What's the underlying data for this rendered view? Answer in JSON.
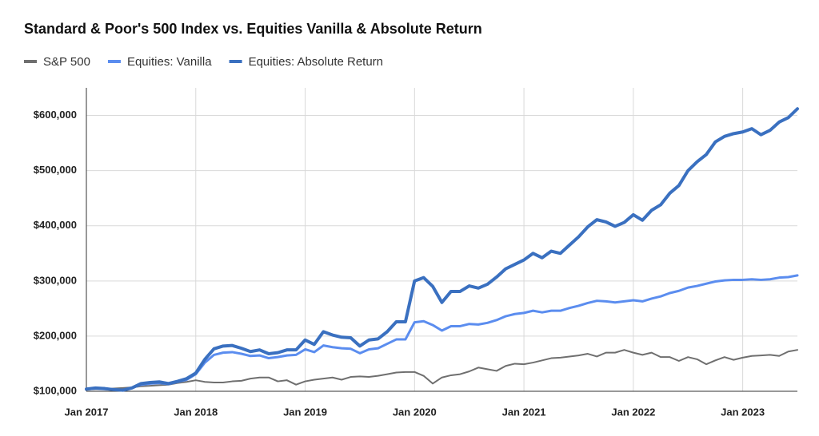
{
  "chart_data": {
    "type": "line",
    "title": "Standard & Poor's 500 Index vs. Equities Vanilla & Absolute Return",
    "categories": [
      "Jan 2017",
      null,
      null,
      null,
      null,
      null,
      null,
      null,
      null,
      null,
      null,
      null,
      "Jan 2018",
      null,
      null,
      null,
      null,
      null,
      null,
      null,
      null,
      null,
      null,
      null,
      "Jan 2019",
      null,
      null,
      null,
      null,
      null,
      null,
      null,
      null,
      null,
      null,
      null,
      "Jan 2020",
      null,
      null,
      null,
      null,
      null,
      null,
      null,
      null,
      null,
      null,
      null,
      "Jan 2021",
      null,
      null,
      null,
      null,
      null,
      null,
      null,
      null,
      null,
      null,
      null,
      "Jan 2022",
      null,
      null,
      null,
      null,
      null,
      null,
      null,
      null,
      null,
      null,
      null,
      "Jan 2023",
      null,
      null,
      null,
      null,
      null,
      null
    ],
    "series": [
      {
        "name": "S&P 500",
        "color": "#6f6f6f",
        "values": [
          103000,
          104000,
          104000,
          105000,
          106000,
          107000,
          109000,
          110000,
          111000,
          112000,
          115000,
          117000,
          120000,
          117000,
          116000,
          116000,
          118000,
          119000,
          123000,
          125000,
          125000,
          118000,
          120000,
          112000,
          118000,
          121000,
          123000,
          125000,
          121000,
          126000,
          127000,
          126000,
          128000,
          131000,
          134000,
          135000,
          135000,
          128000,
          114000,
          125000,
          129000,
          131000,
          136000,
          143000,
          140000,
          137000,
          146000,
          150000,
          149000,
          152000,
          156000,
          160000,
          161000,
          163000,
          165000,
          168000,
          163000,
          170000,
          170000,
          175000,
          170000,
          166000,
          170000,
          162000,
          162000,
          155000,
          162000,
          158000,
          149000,
          156000,
          162000,
          157000,
          161000,
          164000,
          165000,
          166000,
          164000,
          172000,
          175000
        ]
      },
      {
        "name": "Equities: Vanilla",
        "color": "#5b8def",
        "values": [
          104000,
          105000,
          104000,
          103000,
          102000,
          106000,
          112000,
          114000,
          115000,
          113000,
          117000,
          121000,
          131000,
          152000,
          166000,
          170000,
          171000,
          168000,
          164000,
          165000,
          160000,
          162000,
          165000,
          166000,
          176000,
          171000,
          183000,
          180000,
          178000,
          177000,
          169000,
          176000,
          178000,
          186000,
          194000,
          194000,
          225000,
          227000,
          220000,
          210000,
          218000,
          218000,
          222000,
          221000,
          224000,
          229000,
          236000,
          240000,
          242000,
          246000,
          243000,
          246000,
          246000,
          251000,
          255000,
          260000,
          264000,
          263000,
          261000,
          263000,
          265000,
          263000,
          268000,
          272000,
          278000,
          282000,
          288000,
          291000,
          295000,
          299000,
          301000,
          302000,
          302000,
          303000,
          302000,
          303000,
          306000,
          307000,
          310000
        ]
      },
      {
        "name": "Equities: Absolute Return",
        "color": "#3a70c0",
        "values": [
          104000,
          106000,
          105000,
          103000,
          102000,
          106000,
          114000,
          116000,
          117000,
          114000,
          118000,
          123000,
          133000,
          158000,
          177000,
          182000,
          183000,
          178000,
          172000,
          175000,
          168000,
          170000,
          175000,
          175000,
          193000,
          185000,
          208000,
          202000,
          198000,
          197000,
          182000,
          193000,
          195000,
          208000,
          226000,
          226000,
          300000,
          306000,
          290000,
          261000,
          281000,
          281000,
          291000,
          287000,
          294000,
          307000,
          322000,
          330000,
          338000,
          350000,
          342000,
          354000,
          350000,
          365000,
          380000,
          398000,
          411000,
          407000,
          399000,
          406000,
          420000,
          410000,
          428000,
          438000,
          459000,
          473000,
          500000,
          516000,
          529000,
          552000,
          562000,
          567000,
          570000,
          576000,
          565000,
          573000,
          588000,
          596000,
          612000
        ]
      }
    ],
    "ylim": [
      100000,
      650000
    ],
    "yticks": [
      {
        "value": 100000,
        "label": "$100,000"
      },
      {
        "value": 200000,
        "label": "$200,000"
      },
      {
        "value": 300000,
        "label": "$300,000"
      },
      {
        "value": 400000,
        "label": "$400,000"
      },
      {
        "value": 500000,
        "label": "$500,000"
      },
      {
        "value": 600000,
        "label": "$600,000"
      }
    ],
    "grid": true
  }
}
